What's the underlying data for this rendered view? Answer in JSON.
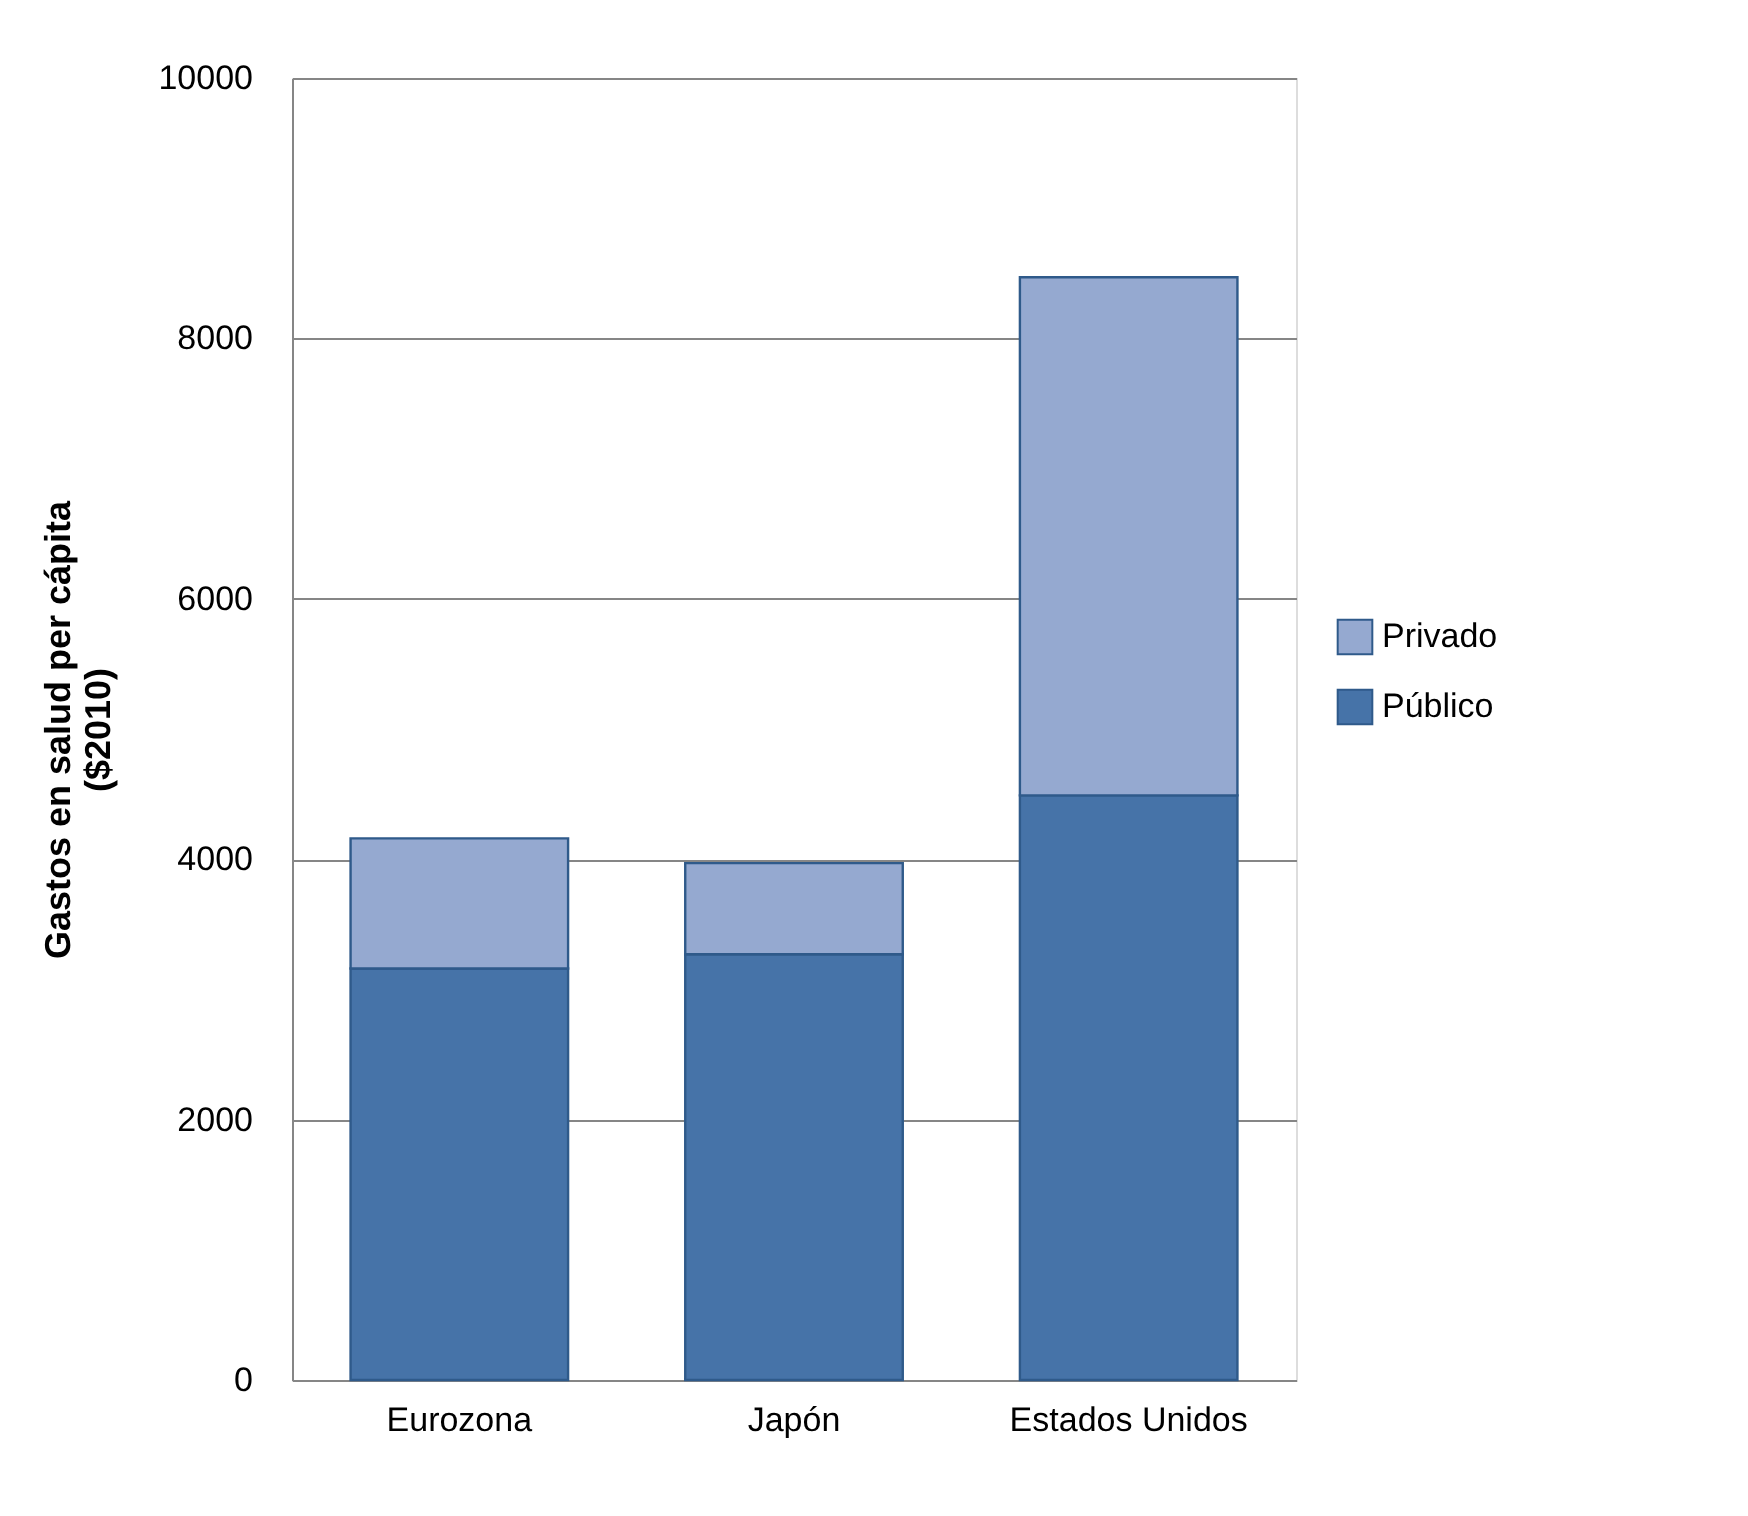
{
  "chart_data": {
    "type": "bar",
    "stacked": true,
    "ylabel": "Gastos en salud per cápita\n($2010)",
    "categories": [
      "Eurozona",
      "Japón",
      "Estados Unidos"
    ],
    "series": [
      {
        "name": "Público",
        "color": "#4673a8",
        "values": [
          3160,
          3270,
          4490
        ]
      },
      {
        "name": "Privado",
        "color": "#95a9d0",
        "values": [
          1000,
          700,
          3980
        ]
      }
    ],
    "ylim": [
      0,
      10000
    ],
    "yticks": [
      0,
      2000,
      4000,
      6000,
      8000,
      10000
    ],
    "grid": "y",
    "legend": "right"
  }
}
